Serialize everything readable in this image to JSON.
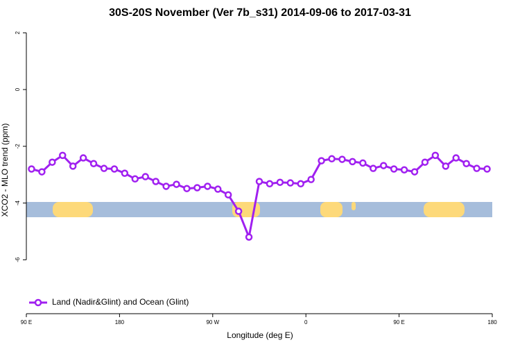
{
  "chart_data": {
    "type": "line",
    "title": "30S-20S November (Ver 7b_s31)   2014-09-06 to 2017-03-31",
    "xlabel": "Longitude (deg E)",
    "ylabel": "XCO2 - MLO trend (ppm)",
    "xlim": [
      90,
      540
    ],
    "ylim": [
      -7.9,
      2.3
    ],
    "xticks": [
      {
        "value": 90,
        "label": "90 E"
      },
      180,
      {
        "value": 270,
        "label": "90 W"
      },
      {
        "value": 360,
        "label": "0"
      },
      {
        "value": 450,
        "label": "90 E"
      },
      {
        "value": 540,
        "label": "180"
      }
    ],
    "yticks": [
      2,
      0,
      -2,
      -4,
      -6
    ],
    "legend": "bottom-left",
    "series": [
      {
        "name": "Land (Nadir&Glint) and Ocean (Glint)",
        "color": "#a020f0",
        "x": [
          95,
          105,
          115,
          125,
          135,
          145,
          155,
          165,
          175,
          185,
          195,
          205,
          215,
          225,
          235,
          245,
          255,
          265,
          275,
          285,
          295,
          305,
          315,
          325,
          335,
          345,
          355,
          365,
          375,
          385,
          395,
          405,
          415,
          425,
          435,
          445,
          455,
          465,
          475,
          485,
          495,
          505,
          515,
          525,
          535
        ],
        "values": [
          -2.8,
          -2.9,
          -2.56,
          -2.32,
          -2.7,
          -2.41,
          -2.61,
          -2.78,
          -2.8,
          -2.95,
          -3.15,
          -3.07,
          -3.24,
          -3.41,
          -3.34,
          -3.49,
          -3.46,
          -3.41,
          -3.51,
          -3.71,
          -4.29,
          -5.2,
          -3.24,
          -3.32,
          -3.27,
          -3.29,
          -3.32,
          -3.17,
          -2.51,
          -2.44,
          -2.46,
          -2.54,
          -2.59,
          -2.78,
          -2.68,
          -2.8,
          -2.83,
          -2.9,
          -2.56,
          -2.32,
          -2.7,
          -2.41,
          -2.61,
          -2.78,
          -2.8
        ]
      }
    ]
  }
}
